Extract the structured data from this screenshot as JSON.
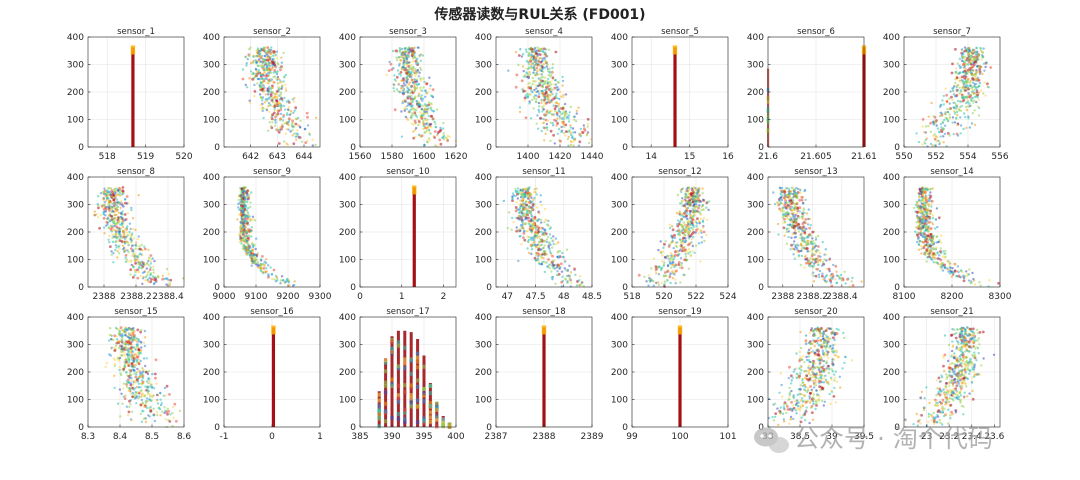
{
  "figure": {
    "title": "传感器读数与RUL关系 (FD001)",
    "watermark": "公众号 · 淘个代码"
  },
  "style": {
    "colors": [
      "#3b4cc0",
      "#2f8fd8",
      "#2ec4b6",
      "#8fd14f",
      "#ffd24a",
      "#f39c12",
      "#e74c3c",
      "#b20f1f"
    ],
    "background": "#ffffff",
    "grid": true
  },
  "chart_data": [
    {
      "type": "scatter",
      "title": "sensor_1",
      "shape": "line",
      "x_center": 518.67,
      "x_spread": 0,
      "xlim": [
        517.5,
        520
      ],
      "xticks": [
        518,
        519,
        520
      ],
      "xticklabels": [
        "518",
        "519",
        "520"
      ],
      "ylim": [
        0,
        400
      ],
      "yticks": [
        0,
        100,
        200,
        300,
        400
      ],
      "rul_max": 362
    },
    {
      "type": "scatter",
      "title": "sensor_2",
      "shape": "decreasing",
      "x_min": 641.3,
      "x_max": 644.3,
      "x_mode": 642.5,
      "xlim": [
        641.0,
        644.6
      ],
      "xticks": [
        642,
        643,
        644
      ],
      "xticklabels": [
        "642",
        "643",
        "644"
      ],
      "ylim": [
        0,
        400
      ],
      "yticks": [
        0,
        100,
        200,
        300,
        400
      ],
      "rul_max": 362
    },
    {
      "type": "scatter",
      "title": "sensor_3",
      "shape": "decreasing",
      "x_min": 1571,
      "x_max": 1616,
      "x_mode": 1589,
      "xlim": [
        1560,
        1620
      ],
      "xticks": [
        1560,
        1580,
        1600,
        1620
      ],
      "xticklabels": [
        "1560",
        "1580",
        "1600",
        "1620"
      ],
      "ylim": [
        0,
        400
      ],
      "yticks": [
        0,
        100,
        200,
        300,
        400
      ],
      "rul_max": 362
    },
    {
      "type": "scatter",
      "title": "sensor_4",
      "shape": "decreasing",
      "x_min": 1383,
      "x_max": 1441,
      "x_mode": 1405,
      "xlim": [
        1380,
        1440
      ],
      "xticks": [
        1400,
        1420,
        1440
      ],
      "xticklabels": [
        "1400",
        "1420",
        "1440"
      ],
      "ylim": [
        0,
        400
      ],
      "yticks": [
        0,
        100,
        200,
        300,
        400
      ],
      "rul_max": 362
    },
    {
      "type": "scatter",
      "title": "sensor_5",
      "shape": "line",
      "x_center": 14.62,
      "x_spread": 0,
      "xlim": [
        13.5,
        16
      ],
      "xticks": [
        14,
        15,
        16
      ],
      "xticklabels": [
        "14",
        "15",
        "16"
      ],
      "ylim": [
        0,
        400
      ],
      "yticks": [
        0,
        100,
        200,
        300,
        400
      ],
      "rul_max": 362
    },
    {
      "type": "scatter",
      "title": "sensor_6",
      "shape": "twolines",
      "x_center": 21.61,
      "x_spread": 0,
      "x_low": 21.6,
      "xlim": [
        21.6,
        21.61
      ],
      "xticks": [
        21.6,
        21.605,
        21.61
      ],
      "xticklabels": [
        "21.6",
        "21.605",
        "21.61"
      ],
      "ylim": [
        0,
        400
      ],
      "yticks": [
        0,
        100,
        200,
        300,
        400
      ],
      "rul_max": 362
    },
    {
      "type": "scatter",
      "title": "sensor_7",
      "shape": "increasing",
      "x_min": 550.5,
      "x_max": 556,
      "x_mode": 554.3,
      "xlim": [
        550,
        556
      ],
      "xticks": [
        550,
        552,
        554,
        556
      ],
      "xticklabels": [
        "550",
        "552",
        "554",
        "556"
      ],
      "ylim": [
        0,
        400
      ],
      "yticks": [
        0,
        100,
        200,
        300,
        400
      ],
      "rul_max": 362
    },
    {
      "type": "scatter",
      "title": "sensor_8",
      "shape": "decreasing",
      "x_min": 2387.9,
      "x_max": 2388.45,
      "x_mode": 2388.05,
      "xlim": [
        2387.9,
        2388.5
      ],
      "xticks": [
        2388,
        2388.2,
        2388.4
      ],
      "xticklabels": [
        "2388",
        "2388.2",
        "2388.4"
      ],
      "ylim": [
        0,
        400
      ],
      "yticks": [
        0,
        100,
        200,
        300,
        400
      ],
      "rul_max": 362
    },
    {
      "type": "scatter",
      "title": "sensor_9",
      "shape": "narrow-decreasing",
      "x_min": 9021,
      "x_max": 9245,
      "x_mode": 9060,
      "xlim": [
        9000,
        9300
      ],
      "xticks": [
        9000,
        9100,
        9200,
        9300
      ],
      "xticklabels": [
        "9000",
        "9100",
        "9200",
        "9300"
      ],
      "ylim": [
        0,
        400
      ],
      "yticks": [
        0,
        100,
        200,
        300,
        400
      ],
      "rul_max": 362
    },
    {
      "type": "scatter",
      "title": "sensor_10",
      "shape": "line",
      "x_center": 1.3,
      "x_spread": 0,
      "xlim": [
        0,
        2.3
      ],
      "xticks": [
        0,
        1,
        2
      ],
      "xticklabels": [
        "0",
        "1",
        "2"
      ],
      "ylim": [
        0,
        400
      ],
      "yticks": [
        0,
        100,
        200,
        300,
        400
      ],
      "rul_max": 362
    },
    {
      "type": "scatter",
      "title": "sensor_11",
      "shape": "decreasing",
      "x_min": 46.85,
      "x_max": 48.5,
      "x_mode": 47.3,
      "xlim": [
        46.8,
        48.5
      ],
      "xticks": [
        47,
        47.5,
        48,
        48.5
      ],
      "xticklabels": [
        "47",
        "47.5",
        "48",
        "48.5"
      ],
      "ylim": [
        0,
        400
      ],
      "yticks": [
        0,
        100,
        200,
        300,
        400
      ],
      "rul_max": 362
    },
    {
      "type": "scatter",
      "title": "sensor_12",
      "shape": "increasing",
      "x_min": 518.9,
      "x_max": 523.4,
      "x_mode": 521.8,
      "xlim": [
        518,
        524
      ],
      "xticks": [
        518,
        520,
        522,
        524
      ],
      "xticklabels": [
        "518",
        "520",
        "522",
        "524"
      ],
      "ylim": [
        0,
        400
      ],
      "yticks": [
        0,
        100,
        200,
        300,
        400
      ],
      "rul_max": 362
    },
    {
      "type": "scatter",
      "title": "sensor_13",
      "shape": "decreasing",
      "x_min": 2387.9,
      "x_max": 2388.5,
      "x_mode": 2388.05,
      "xlim": [
        2387.9,
        2388.55
      ],
      "xticks": [
        2388,
        2388.2,
        2388.4
      ],
      "xticklabels": [
        "2388",
        "2388.2",
        "2388.4"
      ],
      "ylim": [
        0,
        400
      ],
      "yticks": [
        0,
        100,
        200,
        300,
        400
      ],
      "rul_max": 362
    },
    {
      "type": "scatter",
      "title": "sensor_14",
      "shape": "narrow-decreasing",
      "x_min": 8100,
      "x_max": 8293,
      "x_mode": 8140,
      "xlim": [
        8100,
        8300
      ],
      "xticks": [
        8100,
        8200,
        8300
      ],
      "xticklabels": [
        "8100",
        "8200",
        "8300"
      ],
      "ylim": [
        0,
        400
      ],
      "yticks": [
        0,
        100,
        200,
        300,
        400
      ],
      "rul_max": 362
    },
    {
      "type": "scatter",
      "title": "sensor_15",
      "shape": "decreasing",
      "x_min": 8.32,
      "x_max": 8.58,
      "x_mode": 8.42,
      "xlim": [
        8.3,
        8.6
      ],
      "xticks": [
        8.3,
        8.4,
        8.5,
        8.6
      ],
      "xticklabels": [
        "8.3",
        "8.4",
        "8.5",
        "8.6"
      ],
      "ylim": [
        0,
        400
      ],
      "yticks": [
        0,
        100,
        200,
        300,
        400
      ],
      "rul_max": 362
    },
    {
      "type": "scatter",
      "title": "sensor_16",
      "shape": "line",
      "x_center": 0.03,
      "x_spread": 0,
      "xlim": [
        -1,
        1
      ],
      "xticks": [
        -1,
        0,
        1
      ],
      "xticklabels": [
        "-1",
        "0",
        "1"
      ],
      "ylim": [
        0,
        400
      ],
      "yticks": [
        0,
        100,
        200,
        300,
        400
      ],
      "rul_max": 362
    },
    {
      "type": "scatter",
      "title": "sensor_17",
      "shape": "discrete",
      "x_values": [
        388,
        389,
        390,
        391,
        392,
        393,
        394,
        395,
        396,
        397,
        398,
        399
      ],
      "x_peaks": [
        130,
        250,
        330,
        350,
        350,
        345,
        320,
        260,
        160,
        90,
        40,
        15
      ],
      "xlim": [
        385,
        400
      ],
      "xticks": [
        385,
        390,
        395,
        400
      ],
      "xticklabels": [
        "385",
        "390",
        "395",
        "400"
      ],
      "ylim": [
        0,
        400
      ],
      "yticks": [
        0,
        100,
        200,
        300,
        400
      ],
      "rul_max": 362
    },
    {
      "type": "scatter",
      "title": "sensor_18",
      "shape": "line",
      "x_center": 2388,
      "x_spread": 0,
      "xlim": [
        2387,
        2389
      ],
      "xticks": [
        2387,
        2388,
        2389
      ],
      "xticklabels": [
        "2387",
        "2388",
        "2389"
      ],
      "ylim": [
        0,
        400
      ],
      "yticks": [
        0,
        100,
        200,
        300,
        400
      ],
      "rul_max": 362
    },
    {
      "type": "scatter",
      "title": "sensor_19",
      "shape": "line",
      "x_center": 100,
      "x_spread": 0,
      "xlim": [
        99,
        101
      ],
      "xticks": [
        99,
        100,
        101
      ],
      "xticklabels": [
        "99",
        "100",
        "101"
      ],
      "ylim": [
        0,
        400
      ],
      "yticks": [
        0,
        100,
        200,
        300,
        400
      ],
      "rul_max": 362
    },
    {
      "type": "scatter",
      "title": "sensor_20",
      "shape": "increasing",
      "x_min": 38.1,
      "x_max": 39.5,
      "x_mode": 38.85,
      "xlim": [
        38,
        39.5
      ],
      "xticks": [
        38,
        38.5,
        39,
        39.5
      ],
      "xticklabels": [
        "38",
        "38.5",
        "39",
        "39.5"
      ],
      "ylim": [
        0,
        400
      ],
      "yticks": [
        0,
        100,
        200,
        300,
        400
      ],
      "rul_max": 362
    },
    {
      "type": "scatter",
      "title": "sensor_21",
      "shape": "increasing",
      "x_min": 22.9,
      "x_max": 23.62,
      "x_mode": 23.35,
      "xlim": [
        22.8,
        23.65
      ],
      "xticks": [
        23,
        23.2,
        23.4,
        23.6
      ],
      "xticklabels": [
        "23",
        "23.2",
        "23.4",
        "23.6"
      ],
      "ylim": [
        0,
        400
      ],
      "yticks": [
        0,
        100,
        200,
        300,
        400
      ],
      "rul_max": 362
    }
  ]
}
